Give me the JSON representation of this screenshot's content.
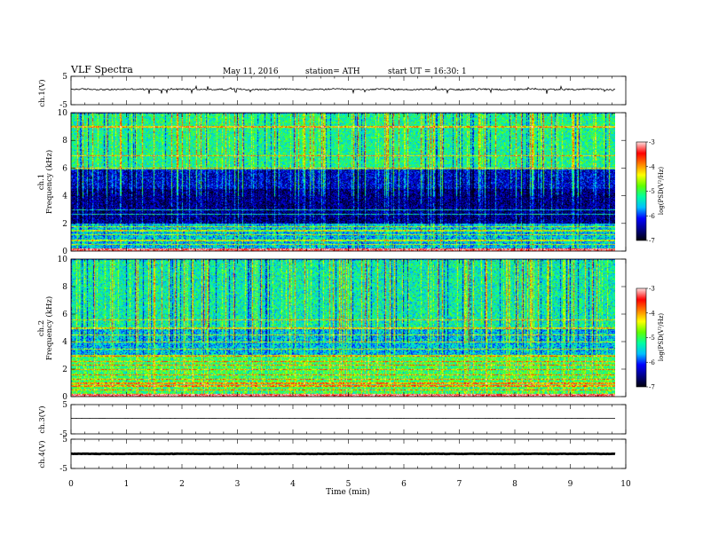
{
  "header": {
    "title": "VLF Spectra",
    "date": "May 11, 2016",
    "station": "station= ATH",
    "start": "start  UT =   16:30: 1"
  },
  "chart_data": {
    "type": "heatmap",
    "xlabel": "Time (min)",
    "xlim": [
      0,
      10
    ],
    "x_ticks": [
      "0",
      "1",
      "2",
      "3",
      "4",
      "5",
      "6",
      "7",
      "8",
      "9",
      "10"
    ],
    "data_end_min": 9.8,
    "colors": {
      "trace": "#000000",
      "spectrogram_scale": [
        "#000010",
        "#00008b",
        "#0000ff",
        "#00c0ff",
        "#00ffa0",
        "#60ff00",
        "#ffff00",
        "#ff8000",
        "#ff0000",
        "#ffd8d8"
      ]
    },
    "panels": [
      {
        "id": "ch1v",
        "kind": "waveform",
        "ylabel": "ch.1(V)",
        "ylim": [
          -5,
          5
        ],
        "y_ticks": [
          "5",
          "-5"
        ],
        "baseline": 0.4,
        "noise": 0.5
      },
      {
        "id": "ch1spec",
        "kind": "spectrogram",
        "ylabel": "Frequency (kHz)",
        "channel": "ch.1",
        "ylim": [
          0,
          10
        ],
        "y_ticks": [
          "0",
          "2",
          "4",
          "6",
          "8",
          "10"
        ],
        "colorbar_label": "log(PSD(V²/Hz)",
        "colorbar_range": [
          -7,
          -3
        ],
        "colorbar_ticks": [
          "-3",
          "-4",
          "-5",
          "-6",
          "-7"
        ],
        "bands_khz": [
          {
            "lo": 0,
            "hi": 2,
            "level": -5.6
          },
          {
            "lo": 2,
            "hi": 4.5,
            "level": -6.6
          },
          {
            "lo": 4.5,
            "hi": 6,
            "level": -6.3
          },
          {
            "lo": 6,
            "hi": 10,
            "level": -5.2
          }
        ],
        "tones_khz": [
          0.2,
          0.5,
          0.8,
          1.2,
          1.5,
          1.8,
          2.7,
          3.0,
          6.0,
          6.9,
          9.0
        ]
      },
      {
        "id": "ch2spec",
        "kind": "spectrogram",
        "ylabel": "Frequency (kHz)",
        "channel": "ch.2",
        "ylim": [
          0,
          10
        ],
        "y_ticks": [
          "0",
          "2",
          "4",
          "6",
          "8",
          "10"
        ],
        "colorbar_label": "log(PSD(V²/Hz)",
        "colorbar_range": [
          -7,
          -3
        ],
        "colorbar_ticks": [
          "-3",
          "-4",
          "-5",
          "-6",
          "-7"
        ],
        "bands_khz": [
          {
            "lo": 0,
            "hi": 3,
            "level": -5.0
          },
          {
            "lo": 3,
            "hi": 5,
            "level": -5.6
          },
          {
            "lo": 5,
            "hi": 10,
            "level": -5.3
          }
        ],
        "tones_khz": [
          0.2,
          0.5,
          0.8,
          1.0,
          1.3,
          1.6,
          2.0,
          2.3,
          2.6,
          3.0,
          3.5,
          4.0,
          4.5,
          5.0,
          5.6
        ]
      },
      {
        "id": "ch3v",
        "kind": "waveform",
        "ylabel": "ch.3(V)",
        "ylim": [
          -5,
          5
        ],
        "y_ticks": [
          "5",
          "-5"
        ],
        "baseline": 0.3,
        "noise": 0.05
      },
      {
        "id": "ch4v",
        "kind": "waveform",
        "ylabel": "ch.4(V)",
        "ylim": [
          -5,
          5
        ],
        "y_ticks": [
          "5",
          "-5"
        ],
        "baseline": 0.0,
        "noise": 0.12
      }
    ]
  }
}
